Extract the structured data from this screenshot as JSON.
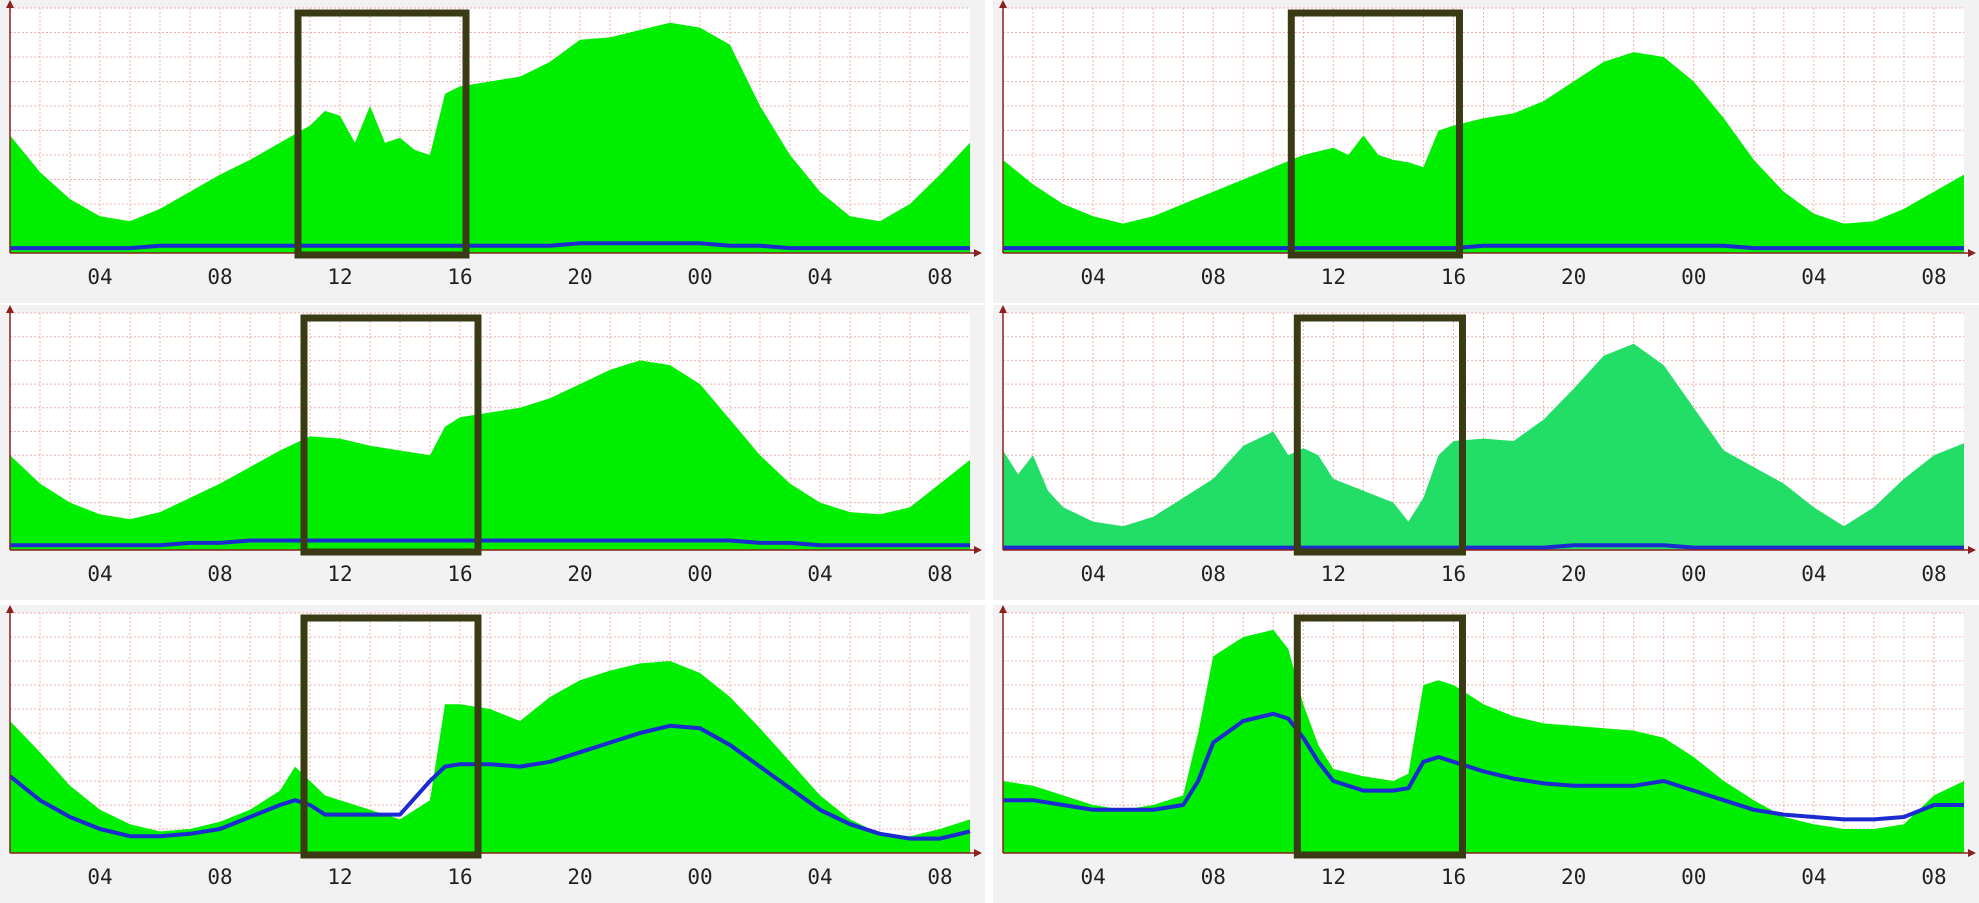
{
  "colors": {
    "fill": "#00ee00",
    "fill_alt": "#22dd66",
    "line": "#1c2bd0",
    "box": "#3a3a14",
    "grid": "#f0b0b0",
    "axis": "#8b2020",
    "bg": "#f2f2f2"
  },
  "x_tick_labels": [
    "04",
    "08",
    "12",
    "16",
    "20",
    "00",
    "04",
    "08"
  ],
  "chart_data": [
    {
      "type": "area",
      "x_hours": [
        1,
        2,
        3,
        4,
        5,
        6,
        7,
        8,
        9,
        10,
        11,
        11.5,
        12,
        12.5,
        13,
        13.5,
        14,
        14.5,
        15,
        15.5,
        16,
        17,
        18,
        19,
        20,
        21,
        22,
        23,
        24,
        25,
        26,
        27,
        28,
        29,
        30,
        31,
        32,
        33
      ],
      "series": [
        {
          "values": [
            0.48,
            0.33,
            0.22,
            0.15,
            0.13,
            0.18,
            0.25,
            0.32,
            0.38,
            0.45,
            0.52,
            0.58,
            0.56,
            0.45,
            0.6,
            0.45,
            0.47,
            0.42,
            0.4,
            0.65,
            0.68,
            0.7,
            0.72,
            0.78,
            0.87,
            0.88,
            0.91,
            0.94,
            0.92,
            0.85,
            0.6,
            0.4,
            0.25,
            0.15,
            0.13,
            0.2,
            0.32,
            0.45
          ]
        },
        {
          "values": [
            0.02,
            0.02,
            0.02,
            0.02,
            0.02,
            0.03,
            0.03,
            0.03,
            0.03,
            0.03,
            0.03,
            0.03,
            0.03,
            0.03,
            0.03,
            0.03,
            0.03,
            0.03,
            0.03,
            0.03,
            0.03,
            0.03,
            0.03,
            0.03,
            0.04,
            0.04,
            0.04,
            0.04,
            0.04,
            0.03,
            0.03,
            0.02,
            0.02,
            0.02,
            0.02,
            0.02,
            0.02,
            0.02
          ]
        }
      ],
      "highlight_hours": [
        10.6,
        16.2
      ]
    },
    {
      "type": "area",
      "x_hours": [
        1,
        2,
        3,
        4,
        5,
        6,
        7,
        8,
        9,
        10,
        11,
        12,
        12.5,
        13,
        13.5,
        14,
        14.5,
        15,
        15.5,
        16,
        17,
        18,
        19,
        20,
        21,
        22,
        23,
        24,
        25,
        26,
        27,
        28,
        29,
        30,
        31,
        32,
        33
      ],
      "series": [
        {
          "values": [
            0.38,
            0.28,
            0.2,
            0.15,
            0.12,
            0.15,
            0.2,
            0.25,
            0.3,
            0.35,
            0.4,
            0.43,
            0.4,
            0.48,
            0.4,
            0.38,
            0.37,
            0.35,
            0.5,
            0.52,
            0.55,
            0.57,
            0.62,
            0.7,
            0.78,
            0.82,
            0.8,
            0.7,
            0.55,
            0.38,
            0.25,
            0.16,
            0.12,
            0.13,
            0.18,
            0.25,
            0.32
          ]
        },
        {
          "values": [
            0.02,
            0.02,
            0.02,
            0.02,
            0.02,
            0.02,
            0.02,
            0.02,
            0.02,
            0.02,
            0.02,
            0.02,
            0.02,
            0.02,
            0.02,
            0.02,
            0.02,
            0.02,
            0.02,
            0.02,
            0.03,
            0.03,
            0.03,
            0.03,
            0.03,
            0.03,
            0.03,
            0.03,
            0.03,
            0.02,
            0.02,
            0.02,
            0.02,
            0.02,
            0.02,
            0.02,
            0.02
          ]
        }
      ],
      "highlight_hours": [
        10.6,
        16.2
      ]
    },
    {
      "type": "area",
      "x_hours": [
        1,
        2,
        3,
        4,
        5,
        6,
        7,
        8,
        9,
        10,
        11,
        12,
        13,
        14,
        15,
        15.5,
        16,
        17,
        18,
        19,
        20,
        21,
        22,
        23,
        24,
        25,
        26,
        27,
        28,
        29,
        30,
        31,
        32,
        33
      ],
      "series": [
        {
          "values": [
            0.4,
            0.28,
            0.2,
            0.15,
            0.13,
            0.16,
            0.22,
            0.28,
            0.35,
            0.42,
            0.48,
            0.47,
            0.44,
            0.42,
            0.4,
            0.52,
            0.56,
            0.58,
            0.6,
            0.64,
            0.7,
            0.76,
            0.8,
            0.78,
            0.7,
            0.55,
            0.4,
            0.28,
            0.2,
            0.16,
            0.15,
            0.18,
            0.28,
            0.38
          ]
        },
        {
          "values": [
            0.02,
            0.02,
            0.02,
            0.02,
            0.02,
            0.02,
            0.03,
            0.03,
            0.04,
            0.04,
            0.04,
            0.04,
            0.04,
            0.04,
            0.04,
            0.04,
            0.04,
            0.04,
            0.04,
            0.04,
            0.04,
            0.04,
            0.04,
            0.04,
            0.04,
            0.04,
            0.03,
            0.03,
            0.02,
            0.02,
            0.02,
            0.02,
            0.02,
            0.02
          ]
        }
      ],
      "highlight_hours": [
        10.8,
        16.6
      ]
    },
    {
      "type": "area",
      "x_hours": [
        1,
        1.5,
        2,
        2.5,
        3,
        3.5,
        4,
        5,
        6,
        7,
        8,
        9,
        10,
        10.5,
        11,
        11.5,
        12,
        13,
        14,
        14.5,
        15,
        15.5,
        16,
        17,
        18,
        19,
        20,
        21,
        22,
        23,
        24,
        25,
        26,
        27,
        28,
        29,
        30,
        31,
        32,
        33
      ],
      "series": [
        {
          "values": [
            0.42,
            0.32,
            0.4,
            0.25,
            0.18,
            0.15,
            0.12,
            0.1,
            0.14,
            0.22,
            0.3,
            0.44,
            0.5,
            0.4,
            0.43,
            0.4,
            0.3,
            0.25,
            0.2,
            0.12,
            0.22,
            0.4,
            0.46,
            0.47,
            0.46,
            0.55,
            0.68,
            0.82,
            0.87,
            0.78,
            0.6,
            0.42,
            0.35,
            0.28,
            0.18,
            0.1,
            0.18,
            0.3,
            0.4,
            0.45
          ]
        },
        {
          "values": [
            0.01,
            0.01,
            0.01,
            0.01,
            0.01,
            0.01,
            0.01,
            0.01,
            0.01,
            0.01,
            0.01,
            0.01,
            0.01,
            0.01,
            0.01,
            0.01,
            0.01,
            0.01,
            0.01,
            0.01,
            0.01,
            0.01,
            0.01,
            0.01,
            0.01,
            0.01,
            0.02,
            0.02,
            0.02,
            0.02,
            0.01,
            0.01,
            0.01,
            0.01,
            0.01,
            0.01,
            0.01,
            0.01,
            0.01,
            0.01
          ]
        }
      ],
      "highlight_hours": [
        10.8,
        16.3
      ]
    },
    {
      "type": "area",
      "x_hours": [
        1,
        2,
        3,
        4,
        5,
        6,
        7,
        8,
        9,
        10,
        10.5,
        11,
        11.5,
        12,
        13,
        14,
        15,
        15.5,
        16,
        17,
        18,
        19,
        20,
        21,
        22,
        23,
        24,
        25,
        26,
        27,
        28,
        29,
        30,
        31,
        32,
        33
      ],
      "series": [
        {
          "values": [
            0.55,
            0.42,
            0.28,
            0.18,
            0.12,
            0.09,
            0.1,
            0.13,
            0.18,
            0.26,
            0.36,
            0.3,
            0.24,
            0.22,
            0.18,
            0.14,
            0.22,
            0.62,
            0.62,
            0.6,
            0.55,
            0.65,
            0.72,
            0.76,
            0.79,
            0.8,
            0.75,
            0.65,
            0.52,
            0.38,
            0.24,
            0.14,
            0.08,
            0.07,
            0.1,
            0.14
          ]
        },
        {
          "values": [
            0.32,
            0.22,
            0.15,
            0.1,
            0.07,
            0.07,
            0.08,
            0.1,
            0.15,
            0.2,
            0.22,
            0.2,
            0.16,
            0.16,
            0.16,
            0.16,
            0.3,
            0.36,
            0.37,
            0.37,
            0.36,
            0.38,
            0.42,
            0.46,
            0.5,
            0.53,
            0.52,
            0.45,
            0.36,
            0.27,
            0.18,
            0.12,
            0.08,
            0.06,
            0.06,
            0.09
          ]
        }
      ],
      "highlight_hours": [
        10.8,
        16.6
      ]
    },
    {
      "type": "area",
      "x_hours": [
        1,
        2,
        3,
        4,
        5,
        6,
        7,
        7.5,
        8,
        9,
        10,
        10.5,
        11,
        11.5,
        12,
        13,
        14,
        14.5,
        15,
        15.5,
        16,
        17,
        18,
        19,
        20,
        21,
        22,
        23,
        24,
        25,
        26,
        27,
        28,
        29,
        30,
        31,
        32,
        33
      ],
      "series": [
        {
          "values": [
            0.3,
            0.28,
            0.24,
            0.2,
            0.18,
            0.2,
            0.24,
            0.5,
            0.82,
            0.9,
            0.93,
            0.85,
            0.62,
            0.45,
            0.35,
            0.32,
            0.3,
            0.33,
            0.7,
            0.72,
            0.7,
            0.62,
            0.57,
            0.54,
            0.53,
            0.52,
            0.51,
            0.48,
            0.4,
            0.3,
            0.22,
            0.15,
            0.12,
            0.1,
            0.1,
            0.12,
            0.24,
            0.3
          ]
        },
        {
          "values": [
            0.22,
            0.22,
            0.2,
            0.18,
            0.18,
            0.18,
            0.2,
            0.3,
            0.46,
            0.55,
            0.58,
            0.56,
            0.48,
            0.38,
            0.3,
            0.26,
            0.26,
            0.27,
            0.38,
            0.4,
            0.38,
            0.34,
            0.31,
            0.29,
            0.28,
            0.28,
            0.28,
            0.3,
            0.26,
            0.22,
            0.18,
            0.16,
            0.15,
            0.14,
            0.14,
            0.15,
            0.2,
            0.2
          ]
        }
      ],
      "highlight_hours": [
        10.8,
        16.3
      ]
    }
  ]
}
